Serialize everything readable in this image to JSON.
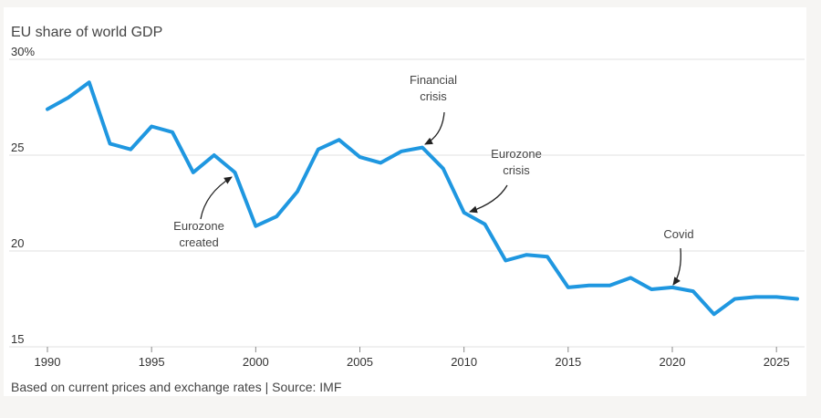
{
  "header": {
    "title": "EU share of world GDP"
  },
  "footer": {
    "source": "Based on current prices and exchange rates | Source: IMF"
  },
  "colors": {
    "line": "#1f97e0",
    "grid": "#e2e2e2",
    "text": "#333333",
    "arrow": "#222222"
  },
  "chart_data": {
    "type": "line",
    "title": "EU share of world GDP",
    "xlabel": "",
    "ylabel": "",
    "xlim": [
      1990,
      2026
    ],
    "ylim": [
      15,
      30
    ],
    "grid": true,
    "x_ticks": [
      "1990",
      "1995",
      "2000",
      "2005",
      "2010",
      "2015",
      "2020",
      "2025"
    ],
    "y_ticks": [
      {
        "value": 30,
        "label": "30%"
      },
      {
        "value": 25,
        "label": "25"
      },
      {
        "value": 20,
        "label": "20"
      },
      {
        "value": 15,
        "label": "15"
      }
    ],
    "x": [
      1990,
      1991,
      1992,
      1993,
      1994,
      1995,
      1996,
      1997,
      1998,
      1999,
      2000,
      2001,
      2002,
      2003,
      2004,
      2005,
      2006,
      2007,
      2008,
      2009,
      2010,
      2011,
      2012,
      2013,
      2014,
      2015,
      2016,
      2017,
      2018,
      2019,
      2020,
      2021,
      2022,
      2023,
      2024,
      2025,
      2026
    ],
    "series": [
      {
        "values": [
          27.4,
          28.0,
          28.8,
          25.6,
          25.3,
          26.5,
          26.2,
          24.1,
          25.0,
          24.1,
          21.3,
          21.8,
          23.1,
          25.3,
          25.8,
          24.9,
          24.6,
          25.2,
          25.4,
          24.3,
          22.0,
          21.4,
          19.5,
          19.8,
          19.7,
          18.1,
          18.2,
          18.2,
          18.6,
          18.0,
          18.1,
          17.9,
          16.7,
          17.5,
          17.6,
          17.6,
          17.5
        ]
      }
    ],
    "annotations": [
      {
        "lines": [
          "Financial",
          "crisis"
        ],
        "target": {
          "x": 2008,
          "y": 25.4
        }
      },
      {
        "lines": [
          "Eurozone",
          "crisis"
        ],
        "target": {
          "x": 2010,
          "y": 22.0
        }
      },
      {
        "lines": [
          "Eurozone",
          "created"
        ],
        "target": {
          "x": 1999,
          "y": 24.1
        }
      },
      {
        "lines": [
          "Covid"
        ],
        "target": {
          "x": 2020,
          "y": 18.1
        }
      }
    ]
  }
}
